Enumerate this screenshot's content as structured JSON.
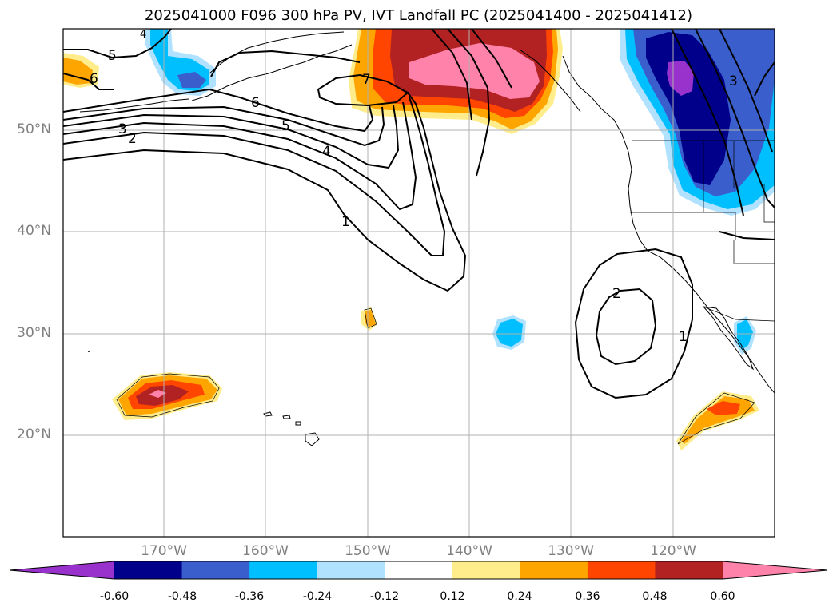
{
  "title": "2025041000 F096 300 hPa PV, IVT Landfall PC (2025041400 - 2025041412)",
  "map": {
    "extent": {
      "lon_min": -180,
      "lon_max": -110,
      "lat_min": 10,
      "lat_max": 60
    },
    "lat_ticks": [
      {
        "value": 50,
        "label": "50°N"
      },
      {
        "value": 40,
        "label": "40°N"
      },
      {
        "value": 30,
        "label": "30°N"
      },
      {
        "value": 20,
        "label": "20°N"
      }
    ],
    "lon_ticks": [
      {
        "value": -170,
        "label": "170°W"
      },
      {
        "value": -160,
        "label": "160°W"
      },
      {
        "value": -150,
        "label": "150°W"
      },
      {
        "value": -140,
        "label": "140°W"
      },
      {
        "value": -130,
        "label": "130°W"
      },
      {
        "value": -120,
        "label": "120°W"
      }
    ],
    "gridlines": true,
    "pv_contour_labels": [
      {
        "text": "5"
      },
      {
        "text": "6"
      },
      {
        "text": "6"
      },
      {
        "text": "7"
      },
      {
        "text": "5"
      },
      {
        "text": "3"
      },
      {
        "text": "2"
      },
      {
        "text": "4"
      },
      {
        "text": "1"
      },
      {
        "text": "2"
      },
      {
        "text": "1"
      },
      {
        "text": "3"
      },
      {
        "text": "4"
      }
    ]
  },
  "colorbar": {
    "levels": [
      "-0.60",
      "-0.48",
      "-0.36",
      "-0.24",
      "-0.12",
      "0.12",
      "0.24",
      "0.36",
      "0.48",
      "0.60"
    ],
    "colors": [
      "#9932cc",
      "#00008b",
      "#3a5fcd",
      "#00bfff",
      "#b0e2ff",
      "#ffffff",
      "#ffec8b",
      "#ffa500",
      "#ff4500",
      "#b22222",
      "#ff82ab"
    ]
  }
}
